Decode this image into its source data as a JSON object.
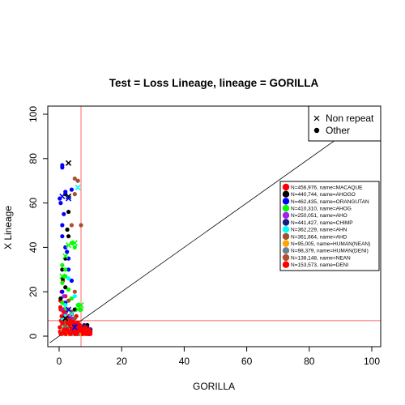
{
  "chart_data": {
    "type": "scatter",
    "title": "Test = Loss Lineage, lineage = GORILLA",
    "xlabel": "GORILLA",
    "ylabel": "X Lineage",
    "xlim": [
      -3,
      104
    ],
    "ylim": [
      -4,
      104
    ],
    "xticks": [
      0,
      20,
      40,
      60,
      80,
      100
    ],
    "yticks": [
      0,
      20,
      40,
      60,
      80,
      100
    ],
    "reference_lines": {
      "vertical_x": 7,
      "horizontal_y": 7,
      "diagonal": "y = x",
      "color": "#ff6666"
    },
    "marker_legend": {
      "placement": "top-right",
      "entries": [
        {
          "symbol": "cross",
          "label": "Non repeat"
        },
        {
          "symbol": "circle",
          "label": "Other"
        }
      ]
    },
    "series_legend_placement": "right",
    "series": [
      {
        "name": "N=456,976, name=MACAQUE",
        "color": "#ff0000",
        "values": [
          [
            1,
            5
          ],
          [
            2,
            8
          ],
          [
            3,
            3
          ],
          [
            4,
            10
          ],
          [
            5,
            2
          ],
          [
            6,
            6
          ],
          [
            0.5,
            12
          ],
          [
            1.5,
            15
          ],
          [
            2.5,
            1
          ],
          [
            3.5,
            4
          ],
          [
            4.5,
            7
          ],
          [
            7,
            3
          ],
          [
            8,
            2
          ],
          [
            9,
            4
          ],
          [
            10,
            1
          ],
          [
            0.8,
            20
          ],
          [
            1.2,
            25
          ],
          [
            2,
            18
          ],
          [
            5.5,
            9
          ],
          [
            6.5,
            1
          ],
          [
            3,
            6
          ],
          [
            0.3,
            2
          ],
          [
            1.8,
            9
          ],
          [
            8.5,
            1.5
          ],
          [
            4.2,
            2.5
          ],
          [
            2.2,
            11
          ],
          [
            0.6,
            7
          ],
          [
            1.6,
            4
          ],
          [
            2.8,
            6
          ],
          [
            3.8,
            2
          ],
          [
            5.2,
            5
          ],
          [
            6.2,
            3
          ],
          [
            7.5,
            1
          ],
          [
            9.5,
            2.5
          ],
          [
            0.4,
            16
          ],
          [
            1.1,
            3
          ],
          [
            2.4,
            5
          ],
          [
            3.2,
            9
          ],
          [
            4.8,
            4
          ],
          [
            5.8,
            1
          ]
        ]
      },
      {
        "name": "N=440,744, name=AHOGO",
        "color": "#000000",
        "values": [
          [
            2,
            64
          ],
          [
            3,
            56
          ],
          [
            1,
            30
          ],
          [
            2,
            22
          ],
          [
            3,
            45
          ],
          [
            1,
            8
          ],
          [
            4,
            5
          ],
          [
            6,
            3
          ],
          [
            8,
            2
          ],
          [
            9,
            5
          ],
          [
            10,
            2
          ],
          [
            2,
            35
          ],
          [
            0.5,
            17
          ],
          [
            1.5,
            12
          ],
          [
            5,
            12
          ],
          [
            3,
            2
          ],
          [
            1.2,
            26
          ],
          [
            2.6,
            48
          ]
        ]
      },
      {
        "name": "N=462,435, name=ORANGUTAN",
        "color": "#0000ff",
        "values": [
          [
            1,
            77
          ],
          [
            1,
            76
          ],
          [
            2,
            65
          ],
          [
            1,
            45
          ],
          [
            2,
            40
          ],
          [
            3,
            35
          ],
          [
            1,
            50
          ],
          [
            4,
            66
          ],
          [
            3,
            30
          ],
          [
            0.5,
            60
          ],
          [
            1.5,
            55
          ],
          [
            2.5,
            38
          ],
          [
            1,
            20
          ],
          [
            2,
            15
          ],
          [
            5,
            4
          ],
          [
            3,
            8
          ],
          [
            1,
            9
          ],
          [
            2,
            3
          ],
          [
            8,
            4
          ],
          [
            9,
            2
          ],
          [
            10,
            3
          ],
          [
            7,
            1
          ],
          [
            6,
            5
          ],
          [
            0.2,
            62
          ],
          [
            4,
            25
          ]
        ]
      },
      {
        "name": "N=410,310, name=AHOG",
        "color": "#00ff00",
        "values": [
          [
            1,
            32
          ],
          [
            2,
            27
          ],
          [
            3,
            21
          ],
          [
            4,
            42
          ],
          [
            5,
            40
          ],
          [
            6,
            14
          ],
          [
            7,
            12
          ],
          [
            1,
            24
          ],
          [
            2,
            12
          ],
          [
            3,
            7
          ],
          [
            5,
            5
          ],
          [
            4,
            17
          ],
          [
            1,
            15
          ],
          [
            2,
            30
          ]
        ]
      },
      {
        "name": "N=250,051, name=AHO",
        "color": "#a020f0",
        "values": [
          [
            1,
            12
          ],
          [
            2,
            10
          ],
          [
            3,
            4
          ],
          [
            1,
            6
          ],
          [
            2,
            3
          ],
          [
            4,
            8
          ],
          [
            6,
            2
          ],
          [
            1.5,
            18
          ]
        ]
      },
      {
        "name": "N=441,427, name=CHIMP",
        "color": "#1a1a80",
        "values": [
          [
            5,
            5
          ],
          [
            6,
            3
          ],
          [
            7,
            4
          ],
          [
            8,
            3
          ],
          [
            9,
            2
          ],
          [
            10,
            2
          ],
          [
            6,
            1
          ],
          [
            7,
            2
          ],
          [
            8,
            5
          ],
          [
            9,
            4
          ],
          [
            10,
            3
          ],
          [
            4,
            1
          ],
          [
            3,
            4
          ],
          [
            9.5,
            1
          ]
        ]
      },
      {
        "name": "N=362,229, name=AHN",
        "color": "#00ffff",
        "values": [
          [
            1,
            8
          ],
          [
            2,
            14
          ],
          [
            3,
            5
          ],
          [
            4,
            2
          ],
          [
            5,
            18
          ],
          [
            3,
            26
          ],
          [
            2,
            9
          ],
          [
            1,
            4
          ]
        ]
      },
      {
        "name": "N=361,664, name=AHD",
        "color": "#a0522d",
        "values": [
          [
            5,
            64
          ],
          [
            7,
            50
          ],
          [
            3,
            16
          ],
          [
            5,
            8
          ],
          [
            6,
            4
          ],
          [
            2,
            6
          ],
          [
            4,
            11
          ],
          [
            1,
            3
          ],
          [
            6,
            70
          ]
        ]
      },
      {
        "name": "N=95,005, name=HUMAN(NEAN)",
        "color": "#ffa500",
        "values": [
          [
            1,
            3
          ],
          [
            2,
            2
          ],
          [
            3,
            1
          ],
          [
            4,
            5
          ],
          [
            5,
            3
          ],
          [
            6,
            2
          ],
          [
            7,
            1
          ]
        ]
      },
      {
        "name": "N=98,379, name=HUMAN(DENI)",
        "color": "#708090",
        "values": [
          [
            1,
            2
          ],
          [
            2,
            4
          ],
          [
            3,
            3
          ],
          [
            4,
            1
          ],
          [
            5,
            2
          ],
          [
            6,
            1
          ]
        ]
      },
      {
        "name": "N=138,148, name=NEAN",
        "color": "#b05030",
        "values": [
          [
            5,
            71
          ],
          [
            4,
            50
          ],
          [
            3,
            12
          ],
          [
            2,
            5
          ],
          [
            1,
            1
          ],
          [
            5,
            20
          ],
          [
            2,
            7
          ]
        ]
      },
      {
        "name": "N=153,573, name=DENI",
        "color": "#ff0000",
        "values": [
          [
            0.5,
            1
          ],
          [
            1.5,
            2
          ],
          [
            2.5,
            3
          ],
          [
            3.5,
            1
          ],
          [
            4.5,
            2
          ],
          [
            5.5,
            1
          ],
          [
            6.5,
            3
          ],
          [
            7.5,
            2
          ],
          [
            8.5,
            1
          ],
          [
            9.5,
            3
          ],
          [
            0.2,
            4
          ],
          [
            1,
            6
          ],
          [
            2,
            1
          ],
          [
            3,
            2
          ],
          [
            4,
            3
          ],
          [
            5,
            1
          ],
          [
            6,
            2
          ],
          [
            7,
            4
          ],
          [
            8,
            3
          ],
          [
            9,
            1
          ],
          [
            10,
            2
          ],
          [
            0.8,
            9
          ],
          [
            1.4,
            11
          ],
          [
            2.6,
            6
          ],
          [
            3.4,
            5
          ],
          [
            4.6,
            4
          ],
          [
            5.6,
            6
          ],
          [
            6.6,
            5
          ],
          [
            7.6,
            1
          ],
          [
            8.6,
            2
          ],
          [
            9.6,
            1
          ],
          [
            0.4,
            13
          ],
          [
            1.6,
            3
          ],
          [
            2.4,
            8
          ],
          [
            3.6,
            7
          ],
          [
            4.4,
            6
          ],
          [
            5.4,
            3
          ],
          [
            6.4,
            4
          ],
          [
            7.4,
            2
          ],
          [
            8.4,
            4
          ]
        ]
      }
    ],
    "non_repeat_marks": [
      {
        "x": 3,
        "y": 78,
        "color": "#000000"
      },
      {
        "x": 3,
        "y": 63,
        "color": "#000000"
      },
      {
        "x": 3,
        "y": 62,
        "color": "#0000ff"
      },
      {
        "x": 6,
        "y": 67,
        "color": "#00ffff"
      },
      {
        "x": 1,
        "y": 63,
        "color": "#0000ff"
      },
      {
        "x": 5,
        "y": 42,
        "color": "#00ff00"
      },
      {
        "x": 3,
        "y": 41,
        "color": "#00ff00"
      },
      {
        "x": 2,
        "y": 36,
        "color": "#00ff00"
      },
      {
        "x": 7,
        "y": 14,
        "color": "#00ff00"
      },
      {
        "x": 6,
        "y": 12,
        "color": "#00ff00"
      },
      {
        "x": 3,
        "y": 12,
        "color": "#0000ff"
      },
      {
        "x": 4,
        "y": 10,
        "color": "#00ffff"
      },
      {
        "x": 2,
        "y": 8,
        "color": "#000000"
      },
      {
        "x": 5,
        "y": 4,
        "color": "#0000ff"
      },
      {
        "x": 1,
        "y": 27,
        "color": "#00ff00"
      }
    ]
  }
}
